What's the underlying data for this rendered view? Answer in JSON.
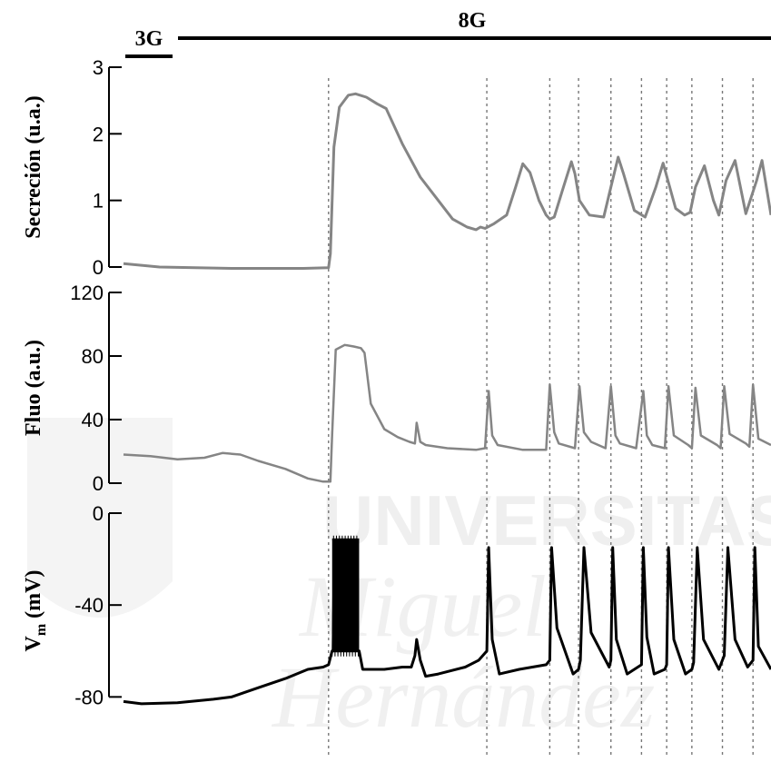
{
  "watermark": {
    "line1": "UNIVERSITAS",
    "line2": "Miguel",
    "line3": "Hernández"
  },
  "conditions": [
    {
      "label": "3G",
      "t_start": 0,
      "t_end": 52
    },
    {
      "label": "8G",
      "t_start": 60,
      "t_end": 720
    }
  ],
  "chart_data": [
    {
      "type": "line",
      "ylabel": "Secreción (u.a.)",
      "ylim": [
        0,
        3
      ],
      "yticks": [
        0,
        1,
        2,
        3
      ],
      "tick_labels": [
        "0",
        "1",
        "2",
        "3"
      ],
      "color": "#858585",
      "series": [
        {
          "x": [
            0,
            40,
            120,
            200,
            228,
            230,
            234,
            240,
            250,
            258,
            270,
            282,
            292,
            310,
            330,
            350,
            366,
            382,
            392,
            397,
            402,
            412,
            426,
            436,
            444,
            452,
            462,
            470,
            474,
            479,
            488,
            498,
            502,
            507,
            518,
            534,
            542,
            550,
            556,
            568,
            580,
            592,
            600,
            614,
            624,
            630,
            636,
            646,
            656,
            662,
            670,
            680,
            692,
            704,
            710,
            720
          ],
          "y": [
            0.05,
            0.0,
            -0.02,
            -0.02,
            -0.01,
            0.2,
            1.8,
            2.4,
            2.58,
            2.6,
            2.55,
            2.45,
            2.38,
            1.85,
            1.35,
            1.0,
            0.72,
            0.6,
            0.56,
            0.6,
            0.58,
            0.65,
            0.78,
            1.2,
            1.55,
            1.42,
            1.0,
            0.78,
            0.72,
            0.75,
            1.15,
            1.58,
            1.4,
            1.0,
            0.78,
            0.75,
            1.2,
            1.65,
            1.4,
            0.85,
            0.75,
            1.2,
            1.56,
            0.88,
            0.78,
            0.82,
            1.2,
            1.52,
            1.0,
            0.78,
            1.3,
            1.6,
            0.8,
            1.3,
            1.6,
            0.78
          ]
        }
      ]
    },
    {
      "type": "line",
      "ylabel": "Fluo (a.u.)",
      "ylim": [
        0,
        120
      ],
      "yticks": [
        0,
        40,
        80,
        120
      ],
      "tick_labels": [
        "0",
        "40",
        "80",
        "120"
      ],
      "color": "#858585",
      "series": [
        {
          "x": [
            0,
            30,
            60,
            90,
            110,
            130,
            150,
            180,
            205,
            222,
            230,
            232,
            236,
            246,
            256,
            264,
            268,
            275,
            290,
            305,
            318,
            324,
            326,
            330,
            336,
            360,
            392,
            402,
            406,
            410,
            416,
            444,
            470,
            474,
            479,
            484,
            502,
            507,
            512,
            520,
            536,
            542,
            547,
            552,
            570,
            578,
            582,
            588,
            602,
            606,
            612,
            628,
            632,
            636,
            642,
            660,
            664,
            668,
            674,
            692,
            696,
            700,
            706,
            720
          ],
          "y": [
            18,
            17,
            15,
            16,
            19,
            18,
            14,
            9,
            3,
            1,
            1,
            30,
            84,
            87,
            86,
            85,
            82,
            50,
            34,
            29,
            26,
            25,
            38,
            26,
            24,
            22,
            21,
            22,
            58,
            30,
            24,
            21,
            21,
            62,
            32,
            25,
            22,
            61,
            32,
            26,
            22,
            61,
            30,
            25,
            22,
            58,
            30,
            24,
            22,
            61,
            30,
            24,
            22,
            60,
            30,
            24,
            22,
            61,
            31,
            25,
            23,
            62,
            28,
            24
          ]
        }
      ]
    },
    {
      "type": "line",
      "ylabel": "V",
      "ylabel_sub": "m",
      "ylabel_unit": " (mV)",
      "ylim": [
        -85,
        0
      ],
      "yticks": [
        -80,
        -40,
        0
      ],
      "tick_labels": [
        "-80",
        "-40",
        "0"
      ],
      "color": "#000000",
      "series": [
        {
          "x": [
            0,
            20,
            60,
            100,
            120,
            150,
            180,
            205,
            222,
            228,
            232,
            262,
            266,
            290,
            310,
            320,
            324,
            326,
            330,
            336,
            350,
            380,
            395,
            404,
            406,
            410,
            418,
            440,
            470,
            474,
            476,
            482,
            500,
            506,
            508,
            512,
            520,
            540,
            542,
            544,
            548,
            560,
            568,
            576,
            578,
            582,
            590,
            602,
            604,
            606,
            612,
            625,
            632,
            634,
            638,
            645,
            662,
            666,
            668,
            672,
            680,
            694,
            700,
            702,
            706,
            720
          ],
          "y": [
            -82,
            -83,
            -82.5,
            -81,
            -80,
            -76,
            -72,
            -68,
            -67,
            -66,
            -60,
            -60,
            -68,
            -68,
            -67,
            -67,
            -62,
            -55,
            -64,
            -71,
            -70,
            -67,
            -64,
            -60,
            -15,
            -55,
            -70,
            -68,
            -66,
            -64,
            -15,
            -50,
            -70,
            -68,
            -64,
            -15,
            -52,
            -67,
            -64,
            -15,
            -55,
            -70,
            -68,
            -66,
            -15,
            -54,
            -70,
            -68,
            -66,
            -15,
            -55,
            -70,
            -68,
            -65,
            -15,
            -55,
            -68,
            -64,
            -62,
            -15,
            -55,
            -67,
            -64,
            -15,
            -58,
            -68
          ]
        }
      ],
      "bursts": [
        {
          "t_start": 232,
          "t_end": 262,
          "v_low": -60,
          "v_high": -11
        }
      ]
    }
  ],
  "event_lines": [
    228,
    404,
    474,
    506,
    542,
    576,
    604,
    632,
    666,
    700
  ]
}
